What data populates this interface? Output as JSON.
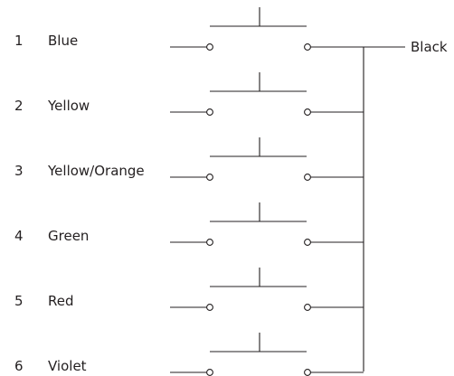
{
  "switches": [
    {
      "number": "1",
      "wire_color": "Blue"
    },
    {
      "number": "2",
      "wire_color": "Yellow"
    },
    {
      "number": "3",
      "wire_color": "Yellow/Orange"
    },
    {
      "number": "4",
      "wire_color": "Green"
    },
    {
      "number": "5",
      "wire_color": "Red"
    },
    {
      "number": "6",
      "wire_color": "Violet"
    }
  ],
  "common_wire": {
    "label": "Black"
  }
}
